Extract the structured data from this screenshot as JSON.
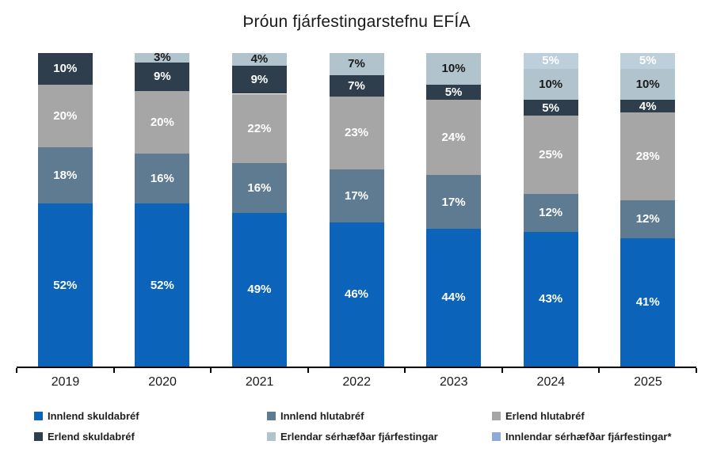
{
  "title": "Þróun fjárfestingarstefnu EFÍA",
  "axis": {
    "line_color": "#000000",
    "tick_color": "#000000",
    "year_label_color": "#1a1a1a"
  },
  "chart_data": {
    "type": "bar",
    "stacked": true,
    "unit": "%",
    "title": "Þróun fjárfestingarstefnu EFÍA",
    "xlabel": "",
    "ylabel": "",
    "ylim": [
      0,
      100
    ],
    "grid": false,
    "legend_position": "bottom",
    "categories": [
      "2019",
      "2020",
      "2021",
      "2022",
      "2023",
      "2024",
      "2025"
    ],
    "series": [
      {
        "name": "Innlend skuldabréf",
        "color": "#0b63ba",
        "label_color": "#ffffff",
        "values": [
          52,
          52,
          49,
          46,
          44,
          43,
          41
        ]
      },
      {
        "name": "Innlend hlutabréf",
        "color": "#5e7b91",
        "label_color": "#ffffff",
        "values": [
          18,
          16,
          16,
          17,
          17,
          12,
          12
        ]
      },
      {
        "name": "Erlend hlutabréf",
        "color": "#a6a6a6",
        "label_color": "#ffffff",
        "values": [
          20,
          20,
          22,
          23,
          24,
          25,
          28
        ]
      },
      {
        "name": "Erlend skuldabréf",
        "color": "#2e3e4d",
        "label_color": "#ffffff",
        "values": [
          10,
          9,
          9,
          7,
          5,
          5,
          4
        ]
      },
      {
        "name": "Erlendar sérhæfðar fjárfestingar",
        "color": "#b1c3cd",
        "label_color": "#1a1a1a",
        "values": [
          0,
          3,
          4,
          7,
          10,
          10,
          10
        ]
      },
      {
        "name": "Innlendar sérhæfðar fjárfestingar*",
        "color": "#bccfda",
        "legend_color": "#8eaadb",
        "label_color": "#ffffff",
        "values": [
          0,
          0,
          0,
          0,
          0,
          5,
          5
        ]
      }
    ]
  }
}
